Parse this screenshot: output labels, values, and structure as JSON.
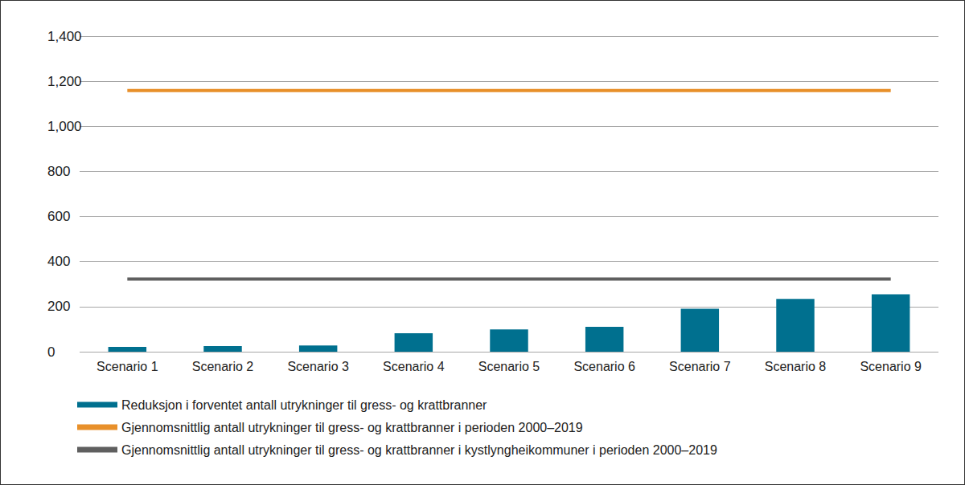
{
  "chart_data": {
    "type": "bar",
    "categories": [
      "Scenario 1",
      "Scenario 2",
      "Scenario 3",
      "Scenario 4",
      "Scenario 5",
      "Scenario 6",
      "Scenario 7",
      "Scenario 8",
      "Scenario 9"
    ],
    "series": [
      {
        "name": "Reduksjon i forventet antall utrykninger til gress- og krattbranner",
        "type": "bar",
        "color": "#00708f",
        "values": [
          21,
          25,
          28,
          82,
          99,
          110,
          191,
          234,
          255
        ]
      },
      {
        "name": "Gjennomsnittlig antall utrykninger til gress- og krattbranner i perioden 2000–2019",
        "type": "line",
        "color": "#e8902a",
        "values": [
          1159,
          1159,
          1159,
          1159,
          1159,
          1159,
          1159,
          1159,
          1159
        ]
      },
      {
        "name": "Gjennomsnittlig antall utrykninger til gress- og krattbranner i kystlyngheikommuner i perioden 2000–2019",
        "type": "line",
        "color": "#5f5f5f",
        "values": [
          322,
          322,
          322,
          322,
          322,
          322,
          322,
          322,
          322
        ]
      }
    ],
    "ylim": [
      0,
      1400
    ],
    "yticks": [
      0,
      200,
      400,
      600,
      800,
      1000,
      1200,
      1400
    ],
    "grid": true,
    "legend": "bottom-left"
  }
}
